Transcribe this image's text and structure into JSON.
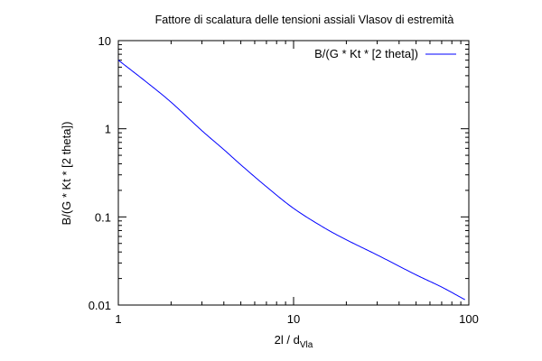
{
  "chart_data": {
    "type": "line",
    "title": "Fattore di scalatura delle tensioni assiali Vlasov di estremità",
    "xlabel_main": "2l / d",
    "xlabel_sub": "Vla",
    "ylabel": "B/(G * Kt * [2 theta])",
    "xscale": "log",
    "yscale": "log",
    "xlim": [
      1,
      100
    ],
    "ylim": [
      0.01,
      10
    ],
    "xticks": [
      {
        "value": 1,
        "label": "1"
      },
      {
        "value": 10,
        "label": "10"
      },
      {
        "value": 100,
        "label": "100"
      }
    ],
    "yticks": [
      {
        "value": 0.01,
        "label": "0.01"
      },
      {
        "value": 0.1,
        "label": "0.1"
      },
      {
        "value": 1,
        "label": "1"
      },
      {
        "value": 10,
        "label": "10"
      }
    ],
    "grid": false,
    "legend_position": "top-right",
    "series": [
      {
        "name": "B/(G * Kt * [2 theta])",
        "color": "#0000ff",
        "x": [
          1,
          1.5,
          2,
          3,
          4,
          5,
          7,
          10,
          15,
          20,
          30,
          50,
          70,
          95
        ],
        "y": [
          6.0,
          3.2,
          2.0,
          0.95,
          0.58,
          0.39,
          0.22,
          0.125,
          0.075,
          0.055,
          0.037,
          0.022,
          0.016,
          0.0115
        ]
      }
    ]
  }
}
